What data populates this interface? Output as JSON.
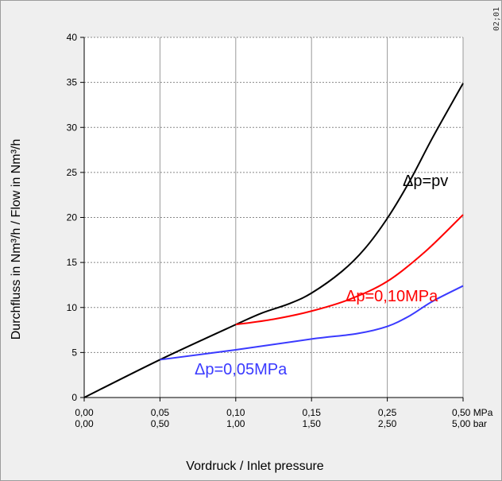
{
  "chart_data": {
    "type": "line",
    "title": "",
    "xlabel": "Vordruck / Inlet pressure",
    "ylabel": "Durchfluss in Nm³/h  /  Flow in Nm³/h",
    "x_categories": [
      {
        "mpa": "0,00",
        "bar": "0,00"
      },
      {
        "mpa": "0,05",
        "bar": "0,50"
      },
      {
        "mpa": "0,10",
        "bar": "1,00"
      },
      {
        "mpa": "0,15",
        "bar": "1,50"
      },
      {
        "mpa": "0,25",
        "bar": "2,50"
      },
      {
        "mpa": "0,50 MPa",
        "bar": "5,00 bar"
      }
    ],
    "ylim": [
      0,
      40
    ],
    "y_ticks": [
      "0",
      "5",
      "10",
      "15",
      "20",
      "25",
      "30",
      "35",
      "40"
    ],
    "grid": true,
    "x_scale_note": "non-linear axis: equally spaced categories",
    "series": [
      {
        "name": "Δp=pv",
        "color": "#000000",
        "points": [
          [
            0,
            0
          ],
          [
            1,
            4.2
          ],
          [
            2,
            8.1
          ],
          [
            2.35,
            9.4
          ],
          [
            2.7,
            10.4
          ],
          [
            3,
            11.6
          ],
          [
            3.4,
            14.0
          ],
          [
            3.7,
            16.5
          ],
          [
            4,
            19.9
          ],
          [
            4.3,
            24.1
          ],
          [
            4.6,
            28.9
          ],
          [
            5,
            34.9
          ]
        ]
      },
      {
        "name": "Δp=0,10MPa",
        "color": "#ff0000",
        "points": [
          [
            2,
            8.1
          ],
          [
            2.5,
            8.7
          ],
          [
            3,
            9.6
          ],
          [
            3.5,
            10.9
          ],
          [
            4,
            12.9
          ],
          [
            4.5,
            16.2
          ],
          [
            5,
            20.3
          ]
        ]
      },
      {
        "name": "Δp=0,05MPa",
        "color": "#3a3aff",
        "points": [
          [
            1,
            4.2
          ],
          [
            2,
            5.3
          ],
          [
            3,
            6.5
          ],
          [
            3.6,
            7.1
          ],
          [
            4,
            7.9
          ],
          [
            4.3,
            9.1
          ],
          [
            4.6,
            10.7
          ],
          [
            5,
            12.4
          ]
        ]
      }
    ],
    "corner_label": "02;01"
  }
}
